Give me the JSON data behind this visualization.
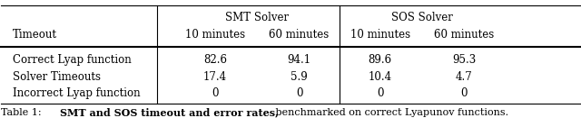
{
  "col_headers_top": [
    "",
    "SMT Solver",
    "",
    "SOS Solver",
    ""
  ],
  "col_headers_sub": [
    "Timeout",
    "10 minutes",
    "60 minutes",
    "10 minutes",
    "60 minutes"
  ],
  "rows": [
    [
      "Correct Lyap function",
      "82.6",
      "94.1",
      "89.6",
      "95.3"
    ],
    [
      "Solver Timeouts",
      "17.4",
      "5.9",
      "10.4",
      "4.7"
    ],
    [
      "Incorrect Lyap function",
      "0",
      "0",
      "0",
      "0"
    ]
  ],
  "caption_bold": "SMT and SOS timeout and error rates,",
  "caption_normal": " benchmarked on correct Lyapunov functions.",
  "caption_prefix": "Table 1: ",
  "figsize": [
    6.4,
    1.31
  ],
  "dpi": 100,
  "bg_color": "white",
  "font_size": 8.5,
  "caption_font_size": 8.0
}
